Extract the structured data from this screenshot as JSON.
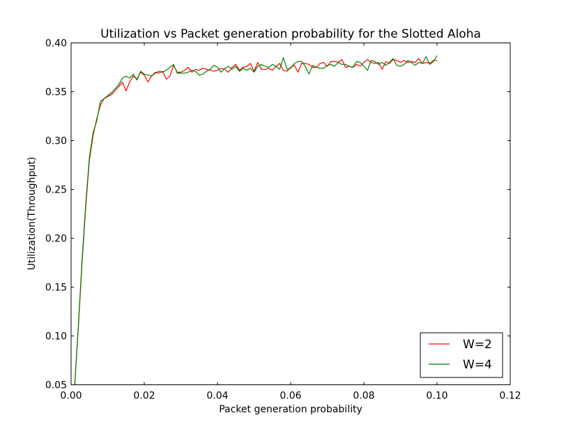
{
  "chart_data": {
    "type": "line",
    "title": "Utilization vs Packet generation probability for the Slotted Aloha",
    "xlabel": "Packet generation probability",
    "ylabel": "Utilization(Throughput)",
    "xlim": [
      0.0,
      0.12
    ],
    "ylim": [
      0.05,
      0.4
    ],
    "xticks": [
      "0.00",
      "0.02",
      "0.04",
      "0.06",
      "0.08",
      "0.10",
      "0.12"
    ],
    "yticks": [
      "0.05",
      "0.10",
      "0.15",
      "0.20",
      "0.25",
      "0.30",
      "0.35",
      "0.40"
    ],
    "grid": false,
    "legend_position": "lower-right",
    "series": [
      {
        "name": "W=2",
        "color": "#ff0000",
        "x": [
          0.001,
          0.002,
          0.003,
          0.004,
          0.005,
          0.006,
          0.007,
          0.008,
          0.009,
          0.01,
          0.011,
          0.012,
          0.013,
          0.014,
          0.015,
          0.016,
          0.017,
          0.018,
          0.019,
          0.02,
          0.021,
          0.022,
          0.023,
          0.024,
          0.025,
          0.026,
          0.027,
          0.028,
          0.029,
          0.03,
          0.031,
          0.032,
          0.033,
          0.034,
          0.035,
          0.036,
          0.037,
          0.038,
          0.039,
          0.04,
          0.041,
          0.042,
          0.043,
          0.044,
          0.045,
          0.046,
          0.047,
          0.048,
          0.049,
          0.05,
          0.051,
          0.052,
          0.053,
          0.054,
          0.055,
          0.056,
          0.057,
          0.058,
          0.059,
          0.06,
          0.061,
          0.062,
          0.063,
          0.064,
          0.065,
          0.066,
          0.067,
          0.068,
          0.069,
          0.07,
          0.071,
          0.072,
          0.073,
          0.074,
          0.075,
          0.076,
          0.077,
          0.078,
          0.079,
          0.08,
          0.081,
          0.082,
          0.083,
          0.084,
          0.085,
          0.086,
          0.087,
          0.088,
          0.089,
          0.09,
          0.091,
          0.092,
          0.093,
          0.094,
          0.095,
          0.096,
          0.097,
          0.098,
          0.099,
          0.1
        ],
        "values": [
          0.05,
          0.11,
          0.175,
          0.232,
          0.28,
          0.305,
          0.322,
          0.336,
          0.343,
          0.345,
          0.347,
          0.351,
          0.355,
          0.36,
          0.351,
          0.36,
          0.366,
          0.363,
          0.37,
          0.367,
          0.36,
          0.366,
          0.37,
          0.369,
          0.371,
          0.363,
          0.366,
          0.377,
          0.37,
          0.37,
          0.372,
          0.375,
          0.37,
          0.373,
          0.372,
          0.374,
          0.373,
          0.372,
          0.371,
          0.372,
          0.374,
          0.373,
          0.37,
          0.375,
          0.378,
          0.372,
          0.375,
          0.376,
          0.379,
          0.371,
          0.38,
          0.373,
          0.373,
          0.374,
          0.372,
          0.376,
          0.379,
          0.372,
          0.371,
          0.375,
          0.377,
          0.37,
          0.379,
          0.379,
          0.378,
          0.375,
          0.375,
          0.379,
          0.38,
          0.376,
          0.381,
          0.381,
          0.38,
          0.383,
          0.375,
          0.376,
          0.375,
          0.378,
          0.376,
          0.38,
          0.383,
          0.38,
          0.379,
          0.38,
          0.373,
          0.381,
          0.379,
          0.383,
          0.382,
          0.38,
          0.382,
          0.38,
          0.381,
          0.38,
          0.384,
          0.379,
          0.38,
          0.379,
          0.382,
          0.382
        ]
      },
      {
        "name": "W=4",
        "color": "#008000",
        "x": [
          0.001,
          0.002,
          0.003,
          0.004,
          0.005,
          0.006,
          0.007,
          0.008,
          0.009,
          0.01,
          0.011,
          0.012,
          0.013,
          0.014,
          0.015,
          0.016,
          0.017,
          0.018,
          0.019,
          0.02,
          0.021,
          0.022,
          0.023,
          0.024,
          0.025,
          0.026,
          0.027,
          0.028,
          0.029,
          0.03,
          0.031,
          0.032,
          0.033,
          0.034,
          0.035,
          0.036,
          0.037,
          0.038,
          0.039,
          0.04,
          0.041,
          0.042,
          0.043,
          0.044,
          0.045,
          0.046,
          0.047,
          0.048,
          0.049,
          0.05,
          0.051,
          0.052,
          0.053,
          0.054,
          0.055,
          0.056,
          0.057,
          0.058,
          0.059,
          0.06,
          0.061,
          0.062,
          0.063,
          0.064,
          0.065,
          0.066,
          0.067,
          0.068,
          0.069,
          0.07,
          0.071,
          0.072,
          0.073,
          0.074,
          0.075,
          0.076,
          0.077,
          0.078,
          0.079,
          0.08,
          0.081,
          0.082,
          0.083,
          0.084,
          0.085,
          0.086,
          0.087,
          0.088,
          0.089,
          0.09,
          0.091,
          0.092,
          0.093,
          0.094,
          0.095,
          0.096,
          0.097,
          0.098,
          0.099,
          0.1
        ],
        "values": [
          0.05,
          0.112,
          0.178,
          0.235,
          0.283,
          0.308,
          0.32,
          0.34,
          0.343,
          0.346,
          0.349,
          0.353,
          0.357,
          0.364,
          0.366,
          0.364,
          0.368,
          0.362,
          0.371,
          0.368,
          0.367,
          0.366,
          0.369,
          0.371,
          0.37,
          0.372,
          0.375,
          0.378,
          0.369,
          0.369,
          0.369,
          0.37,
          0.372,
          0.371,
          0.367,
          0.368,
          0.371,
          0.373,
          0.377,
          0.375,
          0.37,
          0.374,
          0.376,
          0.373,
          0.376,
          0.371,
          0.374,
          0.372,
          0.374,
          0.37,
          0.376,
          0.378,
          0.376,
          0.375,
          0.378,
          0.376,
          0.373,
          0.385,
          0.373,
          0.374,
          0.379,
          0.381,
          0.381,
          0.376,
          0.368,
          0.377,
          0.375,
          0.374,
          0.374,
          0.377,
          0.378,
          0.376,
          0.38,
          0.378,
          0.378,
          0.376,
          0.375,
          0.381,
          0.38,
          0.376,
          0.372,
          0.382,
          0.381,
          0.378,
          0.38,
          0.377,
          0.38,
          0.384,
          0.377,
          0.376,
          0.378,
          0.382,
          0.38,
          0.377,
          0.38,
          0.379,
          0.386,
          0.378,
          0.381,
          0.387
        ]
      }
    ]
  }
}
